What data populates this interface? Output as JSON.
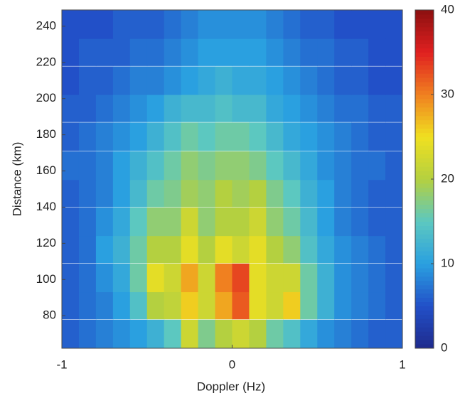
{
  "chart_data": {
    "type": "heatmap",
    "xlabel": "Doppler (Hz)",
    "ylabel": "Distance (km)",
    "x": [
      -0.95,
      -0.85,
      -0.75,
      -0.65,
      -0.55,
      -0.45,
      -0.35,
      -0.25,
      -0.15,
      -0.05,
      0.05,
      0.15,
      0.25,
      0.35,
      0.45,
      0.55,
      0.65,
      0.75,
      0.85,
      0.95
    ],
    "y": [
      70,
      86,
      101,
      117,
      132,
      148,
      163,
      179,
      195,
      210,
      226,
      241
    ],
    "z": [
      [
        6,
        7,
        8,
        9,
        10,
        12,
        15,
        22,
        17,
        20,
        22,
        20,
        16,
        14,
        11,
        9,
        8,
        7,
        6,
        6
      ],
      [
        6,
        7,
        8,
        10,
        14,
        20,
        21,
        26,
        22,
        28,
        32,
        24,
        22,
        26,
        16,
        12,
        9,
        8,
        7,
        6
      ],
      [
        6,
        7,
        9,
        11,
        16,
        24,
        22,
        28,
        22,
        30,
        33,
        24,
        22,
        22,
        16,
        12,
        9,
        8,
        7,
        6
      ],
      [
        6,
        7,
        10,
        12,
        16,
        20,
        20,
        24,
        20,
        24,
        22,
        24,
        20,
        18,
        14,
        11,
        9,
        8,
        7,
        6
      ],
      [
        6,
        7,
        9,
        11,
        15,
        18,
        18,
        22,
        18,
        20,
        20,
        22,
        18,
        16,
        13,
        10,
        8,
        7,
        6,
        6
      ],
      [
        6,
        7,
        8,
        10,
        13,
        16,
        17,
        19,
        18,
        20,
        19,
        20,
        17,
        15,
        12,
        10,
        8,
        7,
        6,
        6
      ],
      [
        7,
        7,
        8,
        10,
        12,
        14,
        16,
        18,
        17,
        18,
        18,
        17,
        15,
        13,
        11,
        9,
        8,
        7,
        7,
        6
      ],
      [
        6,
        7,
        8,
        9,
        10,
        12,
        14,
        16,
        15,
        16,
        16,
        15,
        13,
        11,
        10,
        9,
        8,
        7,
        6,
        6
      ],
      [
        6,
        6,
        7,
        8,
        9,
        10,
        12,
        13,
        13,
        14,
        13,
        13,
        11,
        10,
        9,
        8,
        7,
        7,
        6,
        6
      ],
      [
        5,
        6,
        6,
        7,
        8,
        8,
        9,
        10,
        11,
        12,
        11,
        11,
        10,
        9,
        8,
        7,
        6,
        6,
        5,
        5
      ],
      [
        5,
        6,
        6,
        6,
        7,
        7,
        8,
        9,
        10,
        10,
        10,
        10,
        9,
        8,
        7,
        7,
        6,
        6,
        5,
        5
      ],
      [
        5,
        5,
        5,
        6,
        6,
        6,
        7,
        8,
        9,
        9,
        9,
        9,
        8,
        7,
        6,
        6,
        5,
        5,
        5,
        5
      ]
    ],
    "xlim": [
      -1,
      1
    ],
    "xticks": [
      -1,
      0,
      1
    ],
    "ylim": [
      62,
      249
    ],
    "yticks": [
      80,
      100,
      120,
      140,
      160,
      180,
      200,
      220,
      240
    ],
    "clim": [
      0,
      40
    ],
    "cticks": [
      0,
      10,
      20,
      30,
      40
    ],
    "colormap": [
      "#1f2a8c",
      "#2250c8",
      "#2aa0e0",
      "#5cc8c0",
      "#b4d040",
      "#f0e020",
      "#f08020",
      "#e02020",
      "#8c1010"
    ]
  }
}
